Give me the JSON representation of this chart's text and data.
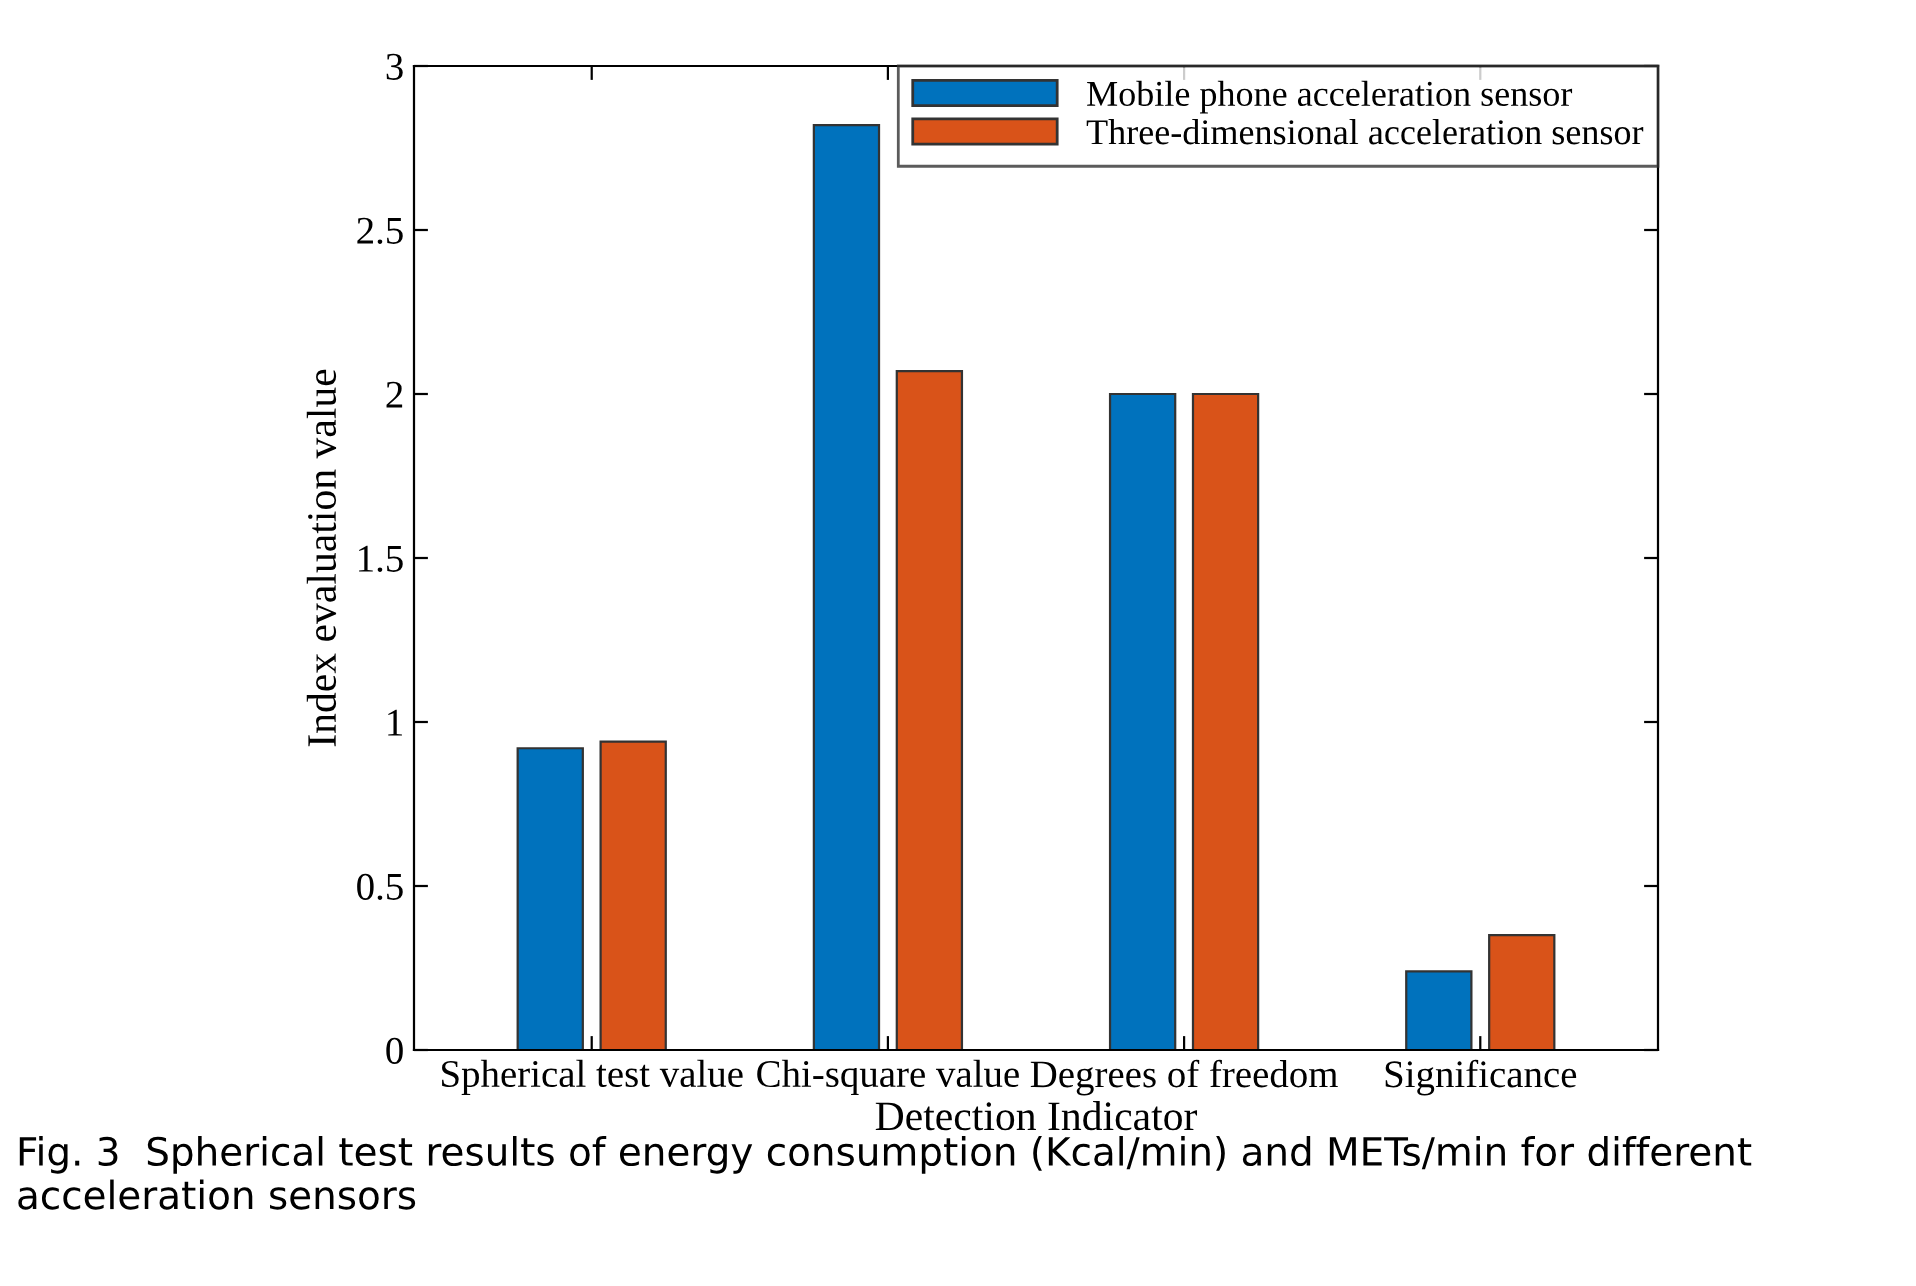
{
  "chart_data": {
    "type": "bar",
    "xlabel": "Detection Indicator",
    "ylabel": "Index evaluation value",
    "categories": [
      "Spherical test value",
      "Chi-square value",
      "Degrees of freedom",
      "Significance"
    ],
    "series": [
      {
        "name": "Mobile phone acceleration sensor",
        "color": "#0072bd",
        "values": [
          0.92,
          2.82,
          2.0,
          0.24
        ]
      },
      {
        "name": "Three-dimensional acceleration sensor",
        "color": "#d95319",
        "values": [
          0.94,
          2.07,
          2.0,
          0.35
        ]
      }
    ],
    "ylim": [
      0,
      3
    ],
    "yticks": [
      0,
      0.5,
      1,
      1.5,
      2,
      2.5,
      3
    ],
    "legend": "top right",
    "grid": false,
    "annotations": [
      "Fig. 3  Spherical test results of energy consumption (Kcal/min) and METs/min for different acceleration sensors"
    ]
  }
}
